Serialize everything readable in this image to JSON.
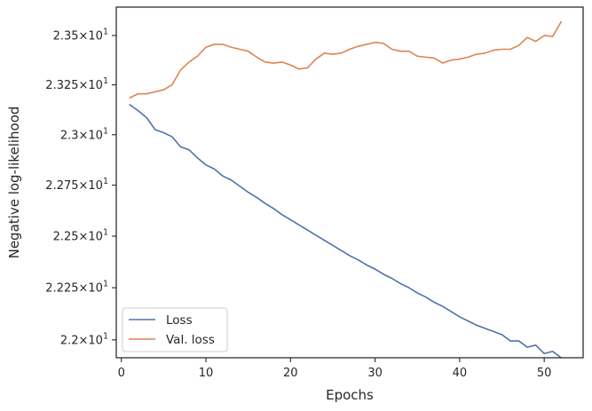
{
  "chart_data": {
    "type": "line",
    "xlabel": "Epochs",
    "ylabel": "Negative log-likelihood",
    "xlim": [
      -0.6,
      54.6
    ],
    "ylim": [
      21.915,
      23.645
    ],
    "yscale": "log",
    "grid": false,
    "legend_position": "lower-left",
    "x_ticks": [
      0,
      10,
      20,
      30,
      40,
      50
    ],
    "x_tick_labels": [
      "0",
      "10",
      "20",
      "30",
      "40",
      "50"
    ],
    "y_ticks": [
      22.0,
      22.25,
      22.5,
      22.75,
      23.0,
      23.25,
      23.5
    ],
    "y_tick_labels": [
      {
        "base": "2.2",
        "exp": "1"
      },
      {
        "base": "2.225",
        "exp": "1"
      },
      {
        "base": "2.25",
        "exp": "1"
      },
      {
        "base": "2.275",
        "exp": "1"
      },
      {
        "base": "2.3",
        "exp": "1"
      },
      {
        "base": "2.325",
        "exp": "1"
      },
      {
        "base": "2.35",
        "exp": "1"
      }
    ],
    "x": [
      1,
      2,
      3,
      4,
      5,
      6,
      7,
      8,
      9,
      10,
      11,
      12,
      13,
      14,
      15,
      16,
      17,
      18,
      19,
      20,
      21,
      22,
      23,
      24,
      25,
      26,
      27,
      28,
      29,
      30,
      31,
      32,
      33,
      34,
      35,
      36,
      37,
      38,
      39,
      40,
      41,
      42,
      43,
      44,
      45,
      46,
      47,
      48,
      49,
      50,
      51,
      52
    ],
    "series": [
      {
        "name": "Loss",
        "color": "#4c72b0",
        "values": [
          23.15,
          23.12,
          23.085,
          23.025,
          23.01,
          22.99,
          22.94,
          22.925,
          22.885,
          22.85,
          22.83,
          22.795,
          22.775,
          22.745,
          22.715,
          22.69,
          22.66,
          22.635,
          22.605,
          22.58,
          22.555,
          22.53,
          22.505,
          22.48,
          22.455,
          22.43,
          22.405,
          22.385,
          22.36,
          22.34,
          22.315,
          22.295,
          22.27,
          22.25,
          22.225,
          22.205,
          22.18,
          22.16,
          22.135,
          22.11,
          22.09,
          22.07,
          22.055,
          22.04,
          22.025,
          21.995,
          21.995,
          21.965,
          21.975,
          21.935,
          21.945,
          21.915
        ]
      },
      {
        "name": "Val. loss",
        "color": "#dd8452",
        "values": [
          23.185,
          23.205,
          23.205,
          23.215,
          23.225,
          23.25,
          23.325,
          23.365,
          23.395,
          23.44,
          23.455,
          23.455,
          23.44,
          23.43,
          23.42,
          23.39,
          23.365,
          23.36,
          23.365,
          23.35,
          23.33,
          23.335,
          23.38,
          23.41,
          23.405,
          23.41,
          23.43,
          23.445,
          23.455,
          23.465,
          23.46,
          23.43,
          23.42,
          23.42,
          23.395,
          23.39,
          23.385,
          23.36,
          23.375,
          23.38,
          23.39,
          23.405,
          23.41,
          23.425,
          23.43,
          23.43,
          23.45,
          23.49,
          23.47,
          23.5,
          23.495,
          23.57
        ]
      }
    ]
  }
}
